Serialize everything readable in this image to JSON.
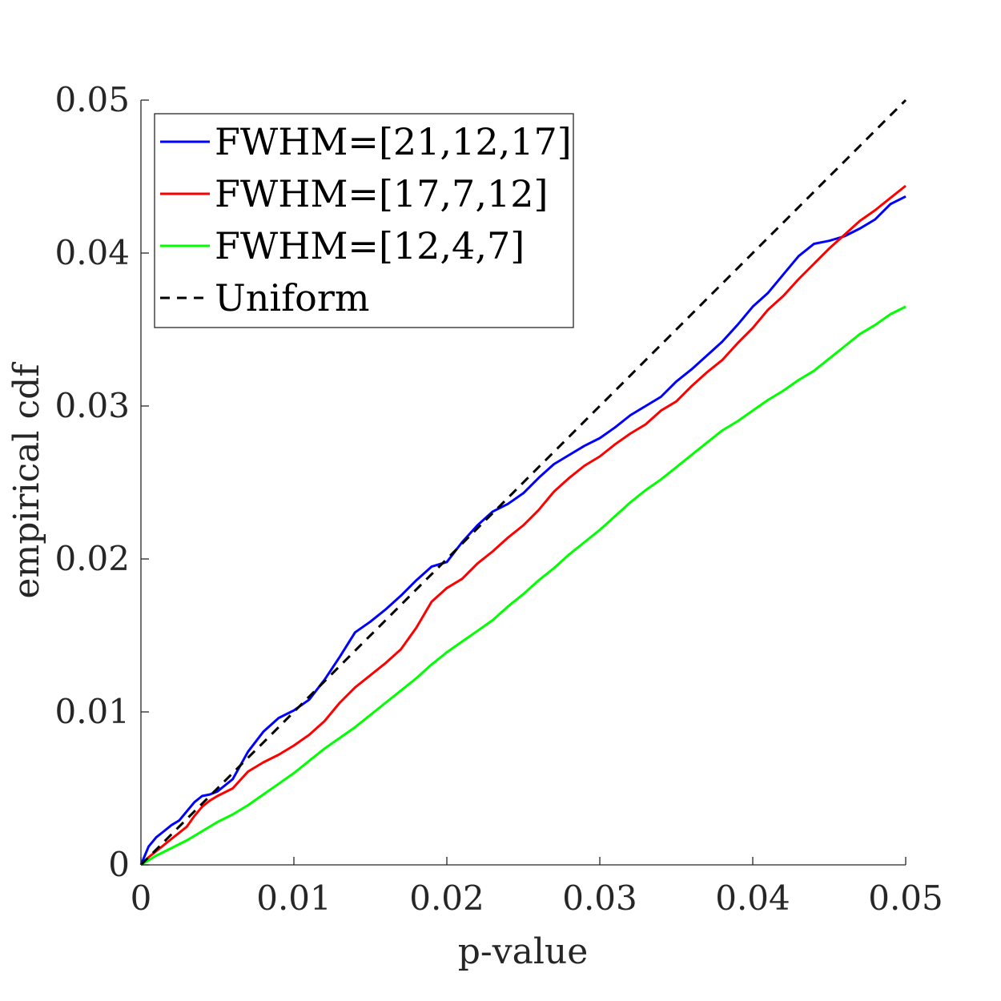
{
  "chart_data": {
    "type": "line",
    "title": "",
    "xlabel": "p-value",
    "ylabel": "empirical cdf",
    "xlim": [
      0,
      0.05
    ],
    "ylim": [
      0,
      0.05
    ],
    "xticks": [
      0,
      0.01,
      0.02,
      0.03,
      0.04,
      0.05
    ],
    "xtick_labels": [
      "0",
      "0.01",
      "0.02",
      "0.03",
      "0.04",
      "0.05"
    ],
    "yticks": [
      0,
      0.01,
      0.02,
      0.03,
      0.04,
      0.05
    ],
    "ytick_labels": [
      "0",
      "0.01",
      "0.02",
      "0.03",
      "0.04",
      "0.05"
    ],
    "grid": false,
    "legend_position": "top-left",
    "series": [
      {
        "name": "FWHM=[21,12,17]",
        "color": "#0000ff",
        "style": "solid",
        "x": [
          0,
          0.0005,
          0.001,
          0.0015,
          0.002,
          0.0025,
          0.003,
          0.0035,
          0.004,
          0.0045,
          0.005,
          0.006,
          0.007,
          0.008,
          0.009,
          0.01,
          0.011,
          0.012,
          0.013,
          0.014,
          0.015,
          0.016,
          0.017,
          0.018,
          0.019,
          0.02,
          0.021,
          0.022,
          0.023,
          0.024,
          0.025,
          0.026,
          0.027,
          0.028,
          0.029,
          0.03,
          0.031,
          0.032,
          0.033,
          0.034,
          0.035,
          0.036,
          0.037,
          0.038,
          0.039,
          0.04,
          0.041,
          0.042,
          0.043,
          0.044,
          0.045,
          0.046,
          0.047,
          0.048,
          0.049,
          0.05
        ],
        "y": [
          0,
          0.0012,
          0.0018,
          0.0022,
          0.0026,
          0.0029,
          0.0035,
          0.0041,
          0.0045,
          0.0046,
          0.0048,
          0.0056,
          0.0074,
          0.0087,
          0.0096,
          0.0101,
          0.0108,
          0.0121,
          0.0136,
          0.0152,
          0.0159,
          0.0167,
          0.0176,
          0.0186,
          0.0195,
          0.0198,
          0.0211,
          0.0222,
          0.0231,
          0.0236,
          0.0243,
          0.0253,
          0.0262,
          0.0268,
          0.0274,
          0.0279,
          0.0286,
          0.0294,
          0.03,
          0.0306,
          0.0316,
          0.0324,
          0.0333,
          0.0342,
          0.0353,
          0.0365,
          0.0374,
          0.0386,
          0.0398,
          0.0406,
          0.0408,
          0.0411,
          0.0416,
          0.0422,
          0.0432,
          0.0437
        ]
      },
      {
        "name": "FWHM=[17,7,12]",
        "color": "#ff0000",
        "style": "solid",
        "x": [
          0,
          0.0005,
          0.001,
          0.0015,
          0.002,
          0.0025,
          0.003,
          0.0035,
          0.004,
          0.0045,
          0.005,
          0.006,
          0.007,
          0.008,
          0.009,
          0.01,
          0.011,
          0.012,
          0.013,
          0.014,
          0.015,
          0.016,
          0.017,
          0.018,
          0.019,
          0.02,
          0.021,
          0.022,
          0.023,
          0.024,
          0.025,
          0.026,
          0.027,
          0.028,
          0.029,
          0.03,
          0.031,
          0.032,
          0.033,
          0.034,
          0.035,
          0.036,
          0.037,
          0.038,
          0.039,
          0.04,
          0.041,
          0.042,
          0.043,
          0.044,
          0.045,
          0.046,
          0.047,
          0.048,
          0.049,
          0.05
        ],
        "y": [
          0,
          0.0005,
          0.0009,
          0.0013,
          0.0017,
          0.0021,
          0.0025,
          0.0032,
          0.0038,
          0.0042,
          0.0045,
          0.005,
          0.0061,
          0.0067,
          0.0072,
          0.0078,
          0.0085,
          0.0094,
          0.0106,
          0.0116,
          0.0124,
          0.0132,
          0.0141,
          0.0155,
          0.0172,
          0.0181,
          0.0187,
          0.0197,
          0.0205,
          0.0214,
          0.0222,
          0.0232,
          0.0244,
          0.0253,
          0.0261,
          0.0267,
          0.0275,
          0.0282,
          0.0288,
          0.0297,
          0.0303,
          0.0313,
          0.0322,
          0.033,
          0.0341,
          0.0351,
          0.0363,
          0.0372,
          0.0383,
          0.0393,
          0.0403,
          0.0412,
          0.0421,
          0.0428,
          0.0436,
          0.0444
        ]
      },
      {
        "name": "FWHM=[12,4,7]",
        "color": "#00ff00",
        "style": "solid",
        "x": [
          0,
          0.001,
          0.002,
          0.003,
          0.004,
          0.005,
          0.006,
          0.007,
          0.008,
          0.009,
          0.01,
          0.011,
          0.012,
          0.013,
          0.014,
          0.015,
          0.016,
          0.017,
          0.018,
          0.019,
          0.02,
          0.021,
          0.022,
          0.023,
          0.024,
          0.025,
          0.026,
          0.027,
          0.028,
          0.029,
          0.03,
          0.031,
          0.032,
          0.033,
          0.034,
          0.035,
          0.036,
          0.037,
          0.038,
          0.039,
          0.04,
          0.041,
          0.042,
          0.043,
          0.044,
          0.045,
          0.046,
          0.047,
          0.048,
          0.049,
          0.05
        ],
        "y": [
          0,
          0.0006,
          0.0011,
          0.0016,
          0.0022,
          0.0028,
          0.0033,
          0.0039,
          0.0046,
          0.0053,
          0.006,
          0.0068,
          0.0076,
          0.0083,
          0.009,
          0.0098,
          0.0106,
          0.0114,
          0.0122,
          0.0131,
          0.0139,
          0.0146,
          0.0153,
          0.016,
          0.0169,
          0.0177,
          0.0186,
          0.0194,
          0.0203,
          0.0211,
          0.0219,
          0.0228,
          0.0237,
          0.0245,
          0.0252,
          0.026,
          0.0268,
          0.0276,
          0.0284,
          0.029,
          0.0297,
          0.0304,
          0.031,
          0.0317,
          0.0323,
          0.0331,
          0.0339,
          0.0347,
          0.0353,
          0.036,
          0.0365
        ]
      },
      {
        "name": "Uniform",
        "color": "#000000",
        "style": "dashed",
        "x": [
          0,
          0.05
        ],
        "y": [
          0,
          0.05
        ]
      }
    ]
  }
}
